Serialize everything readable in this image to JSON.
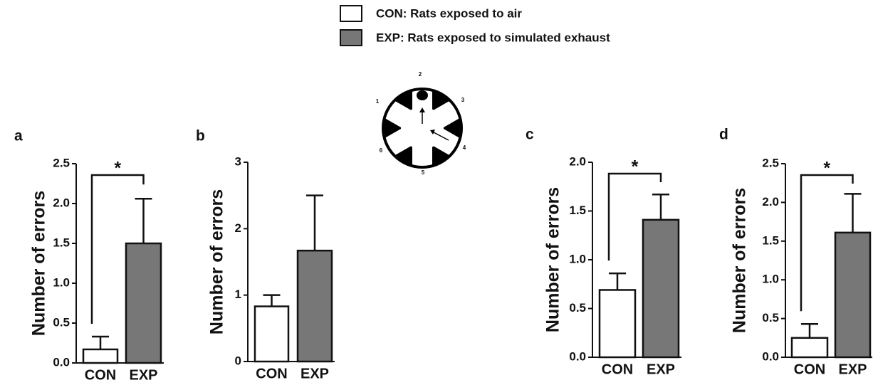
{
  "legend": [
    {
      "label": "CON: Rats exposed to air",
      "color": "#ffffff"
    },
    {
      "label": "EXP: Rats exposed to simulated exhaust",
      "color": "#777777"
    }
  ],
  "maze": {
    "arm_labels": [
      "1",
      "2",
      "3",
      "4",
      "5",
      "6"
    ]
  },
  "chart_data": [
    {
      "type": "bar",
      "label": "a",
      "ylabel": "Number of errors",
      "categories": [
        "CON",
        "EXP"
      ],
      "values": [
        0.17,
        1.5
      ],
      "errors": [
        0.16,
        0.56
      ],
      "colors": [
        "#ffffff",
        "#777777"
      ],
      "annotation": "*",
      "ylim": [
        0,
        2.5
      ],
      "yticks": [
        {
          "value": 0,
          "label": "0.0"
        },
        0.5,
        {
          "value": 1,
          "label": "1.0"
        },
        1.5,
        {
          "value": 2,
          "label": "2.0"
        },
        2.5
      ]
    },
    {
      "type": "bar",
      "label": "b",
      "ylabel": "Number of errors",
      "categories": [
        "CON",
        "EXP"
      ],
      "values": [
        0.83,
        1.67
      ],
      "errors": [
        0.17,
        0.83
      ],
      "colors": [
        "#ffffff",
        "#777777"
      ],
      "ylim": [
        0,
        3
      ],
      "yticks": [
        0,
        1,
        2,
        3
      ]
    },
    {
      "type": "bar",
      "label": "c",
      "ylabel": "Number of errors",
      "categories": [
        "CON",
        "EXP"
      ],
      "values": [
        0.69,
        1.41
      ],
      "errors": [
        0.17,
        0.26
      ],
      "colors": [
        "#ffffff",
        "#777777"
      ],
      "annotation": "*",
      "ylim": [
        0,
        2
      ],
      "yticks": [
        {
          "value": 0,
          "label": "0.0"
        },
        0.5,
        {
          "value": 1,
          "label": "1.0"
        },
        1.5,
        {
          "value": 2,
          "label": "2.0"
        }
      ]
    },
    {
      "type": "bar",
      "label": "d",
      "ylabel": "Number of errors",
      "categories": [
        "CON",
        "EXP"
      ],
      "values": [
        0.25,
        1.61
      ],
      "errors": [
        0.18,
        0.5
      ],
      "colors": [
        "#ffffff",
        "#777777"
      ],
      "annotation": "*",
      "ylim": [
        0,
        2.5
      ],
      "yticks": [
        {
          "value": 0,
          "label": "0.0"
        },
        0.5,
        {
          "value": 1,
          "label": "1.0"
        },
        1.5,
        {
          "value": 2,
          "label": "2.0"
        },
        2.5
      ]
    }
  ]
}
